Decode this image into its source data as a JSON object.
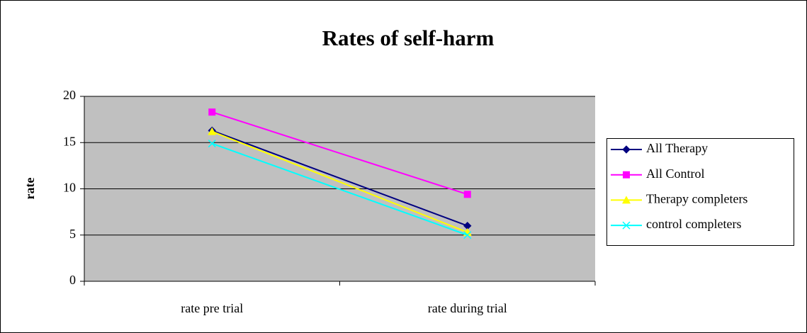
{
  "chart_data": {
    "type": "line",
    "title": "Rates of self-harm",
    "y_label": "rate",
    "categories": [
      "rate pre trial",
      "rate during trial"
    ],
    "series": [
      {
        "name": "All Therapy",
        "color": "#000080",
        "marker": "diamond",
        "values": [
          16.3,
          6.0
        ]
      },
      {
        "name": "All Control",
        "color": "#FF00FF",
        "marker": "square",
        "values": [
          18.3,
          9.4
        ]
      },
      {
        "name": "Therapy completers",
        "color": "#FFFF00",
        "marker": "triangle",
        "values": [
          16.2,
          5.3
        ]
      },
      {
        "name": "control completers",
        "color": "#00FFFF",
        "marker": "x",
        "values": [
          14.9,
          5.0
        ]
      }
    ],
    "ylim": [
      0,
      20
    ],
    "yticks": [
      0,
      5,
      10,
      15,
      20
    ],
    "grid": true,
    "legend": "right"
  }
}
